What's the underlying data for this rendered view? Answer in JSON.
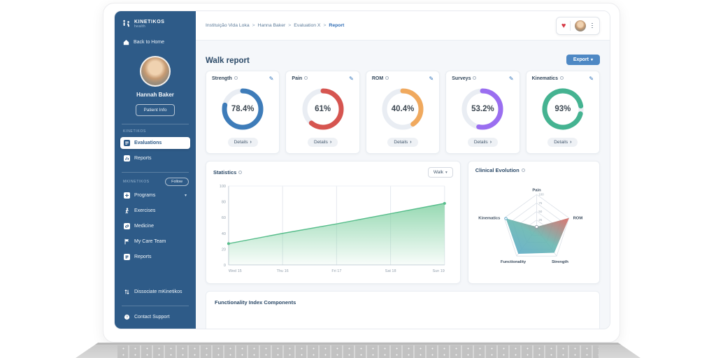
{
  "brand": {
    "name": "KINETIKOS",
    "tagline": "health"
  },
  "sidebar": {
    "back_home": "Back to Home",
    "user_name": "Hannah Baker",
    "patient_info_label": "Patient Info",
    "section_kinetikos": "KINETIKOS",
    "section_mkinetikos": "MKINETIKOS",
    "follow_label": "Follow",
    "evaluations_label": "Evaluations",
    "reports_label": "Reports",
    "programs_label": "Programs",
    "exercises_label": "Exercises",
    "medicine_label": "Medicine",
    "care_team_label": "My Care Team",
    "reports2_label": "Reports",
    "dissociate_label": "Dissociate mKinetikos",
    "contact_label": "Contact Support"
  },
  "header": {
    "breadcrumb": [
      "Instituição Vida Loka",
      "Hanna Baker",
      "Evaluation X",
      "Report"
    ],
    "separator": ">",
    "title": "Walk report",
    "export_label": "Export"
  },
  "labels": {
    "details": "Details"
  },
  "chart_data": [
    {
      "type": "donut",
      "items": [
        {
          "label": "Strength",
          "value": "78.4%",
          "percent": 78.4,
          "color": "#3e7cb9",
          "start_deg": 0
        },
        {
          "label": "Pain",
          "value": "61%",
          "percent": 61,
          "color": "#d65550",
          "start_deg": 0
        },
        {
          "label": "ROM",
          "value": "40.4%",
          "percent": 40.4,
          "color": "#f0a95e",
          "start_deg": 0
        },
        {
          "label": "Surveys",
          "value": "53.2%",
          "percent": 53.2,
          "color": "#9a6ef0",
          "start_deg": 0
        },
        {
          "label": "Kinematics",
          "value": "93%",
          "percent": 93,
          "color": "#45b391",
          "start_deg": 105
        }
      ]
    },
    {
      "type": "area",
      "title": "Statistics",
      "filter": "Walk",
      "x": [
        "Wed 15",
        "Thu 16",
        "Fri 17",
        "Sat 18",
        "Sun 19"
      ],
      "values": [
        27,
        40,
        52,
        65,
        78
      ],
      "ylim": [
        0,
        100
      ],
      "yticks": [
        0,
        20,
        40,
        60,
        80,
        100
      ],
      "line_color": "#57bd8b",
      "fill_color": "#7ccf9f",
      "grid": "vertical"
    },
    {
      "type": "radar",
      "title": "Clinical Evolution",
      "categories": [
        "Pain",
        "ROM",
        "Strength",
        "Functionality",
        "Kinematics"
      ],
      "values": [
        5,
        100,
        88,
        92,
        95
      ],
      "rlim": [
        0,
        100
      ],
      "rticks": [
        25,
        50,
        75,
        100
      ],
      "gradient": [
        "#58a7c9",
        "#63b4ae",
        "#d9625c"
      ]
    }
  ],
  "bottom": {
    "title": "Functionality Index Components"
  }
}
